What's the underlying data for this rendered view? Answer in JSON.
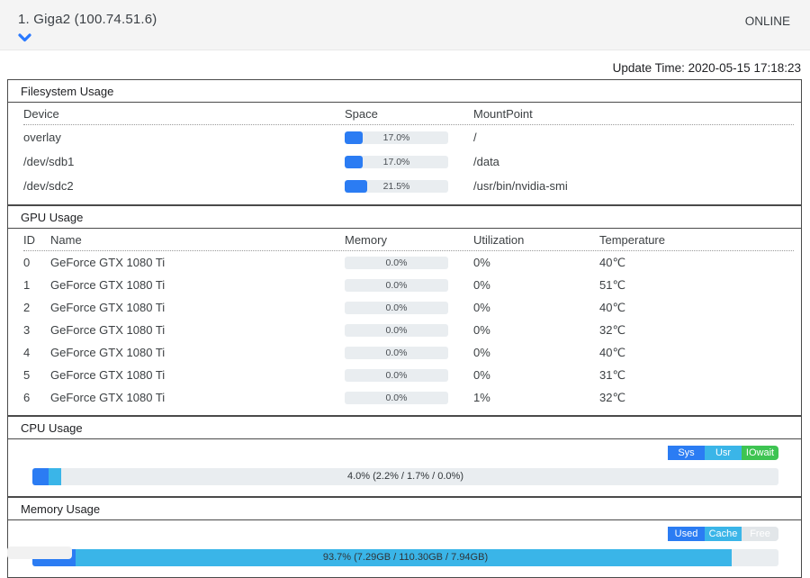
{
  "header": {
    "title": "1. Giga2 (100.74.51.6)",
    "status": "ONLINE"
  },
  "update_time": "Update Time: 2020-05-15 17:18:23",
  "filesystem": {
    "title": "Filesystem Usage",
    "columns": [
      "Device",
      "Space",
      "MountPoint"
    ],
    "rows": [
      {
        "device": "overlay",
        "space_pct": 17.0,
        "space_label": "17.0%",
        "mount": "/"
      },
      {
        "device": "/dev/sdb1",
        "space_pct": 17.0,
        "space_label": "17.0%",
        "mount": "/data"
      },
      {
        "device": "/dev/sdc2",
        "space_pct": 21.5,
        "space_label": "21.5%",
        "mount": "/usr/bin/nvidia-smi"
      }
    ]
  },
  "gpu": {
    "title": "GPU Usage",
    "columns": [
      "ID",
      "Name",
      "Memory",
      "Utilization",
      "Temperature"
    ],
    "rows": [
      {
        "id": "0",
        "name": "GeForce GTX 1080 Ti",
        "memory_pct": 0,
        "memory_label": "0.0%",
        "utilization": "0%",
        "temperature": "40℃"
      },
      {
        "id": "1",
        "name": "GeForce GTX 1080 Ti",
        "memory_pct": 0,
        "memory_label": "0.0%",
        "utilization": "0%",
        "temperature": "51℃"
      },
      {
        "id": "2",
        "name": "GeForce GTX 1080 Ti",
        "memory_pct": 0,
        "memory_label": "0.0%",
        "utilization": "0%",
        "temperature": "40℃"
      },
      {
        "id": "3",
        "name": "GeForce GTX 1080 Ti",
        "memory_pct": 0,
        "memory_label": "0.0%",
        "utilization": "0%",
        "temperature": "32℃"
      },
      {
        "id": "4",
        "name": "GeForce GTX 1080 Ti",
        "memory_pct": 0,
        "memory_label": "0.0%",
        "utilization": "0%",
        "temperature": "40℃"
      },
      {
        "id": "5",
        "name": "GeForce GTX 1080 Ti",
        "memory_pct": 0,
        "memory_label": "0.0%",
        "utilization": "0%",
        "temperature": "31℃"
      },
      {
        "id": "6",
        "name": "GeForce GTX 1080 Ti",
        "memory_pct": 0,
        "memory_label": "0.0%",
        "utilization": "1%",
        "temperature": "32℃"
      }
    ]
  },
  "cpu": {
    "title": "CPU Usage",
    "legend": [
      {
        "label": "Sys",
        "color": "#2b7cf3"
      },
      {
        "label": "Usr",
        "color": "#3ab5e8"
      },
      {
        "label": "IOwait",
        "color": "#3ec452"
      }
    ],
    "bar": {
      "label": "4.0% (2.2% / 1.7% / 0.0%)",
      "segments": [
        {
          "pct": 2.2,
          "color": "#2b7cf3"
        },
        {
          "pct": 1.7,
          "color": "#3ab5e8"
        },
        {
          "pct": 0.0,
          "color": "#3ec452"
        }
      ]
    }
  },
  "memory": {
    "title": "Memory Usage",
    "legend": [
      {
        "label": "Used",
        "color": "#2b7cf3"
      },
      {
        "label": "Cache",
        "color": "#3ab5e8"
      },
      {
        "label": "Free",
        "color": "#e2e6e9"
      }
    ],
    "bar": {
      "label": "93.7% (7.29GB / 110.30GB / 7.94GB)",
      "segments": [
        {
          "pct": 5.8,
          "color": "#2b7cf3"
        },
        {
          "pct": 87.9,
          "color": "#3ab5e8"
        }
      ]
    }
  },
  "colors": {
    "accent_blue": "#2b7cf3",
    "cyan": "#3ab5e8",
    "green": "#3ec452",
    "track_gray": "#e9edf0",
    "free_gray": "#e2e6e9",
    "header_bg": "#f4f4f4",
    "section_border": "#4a4a4a"
  }
}
